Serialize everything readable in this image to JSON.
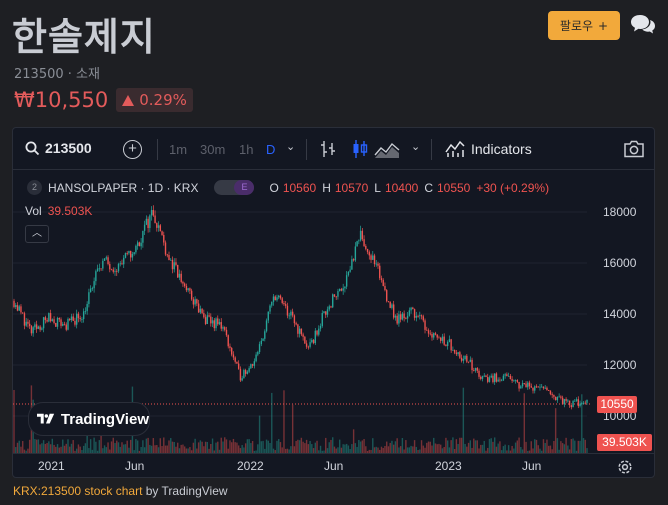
{
  "stock": {
    "name": "한솔제지",
    "meta": "213500 · 소재",
    "price": "₩10,550",
    "change": "0.29%",
    "follow_label": "팔로우",
    "follow_plus": "+"
  },
  "toolbar": {
    "symbol": "213500",
    "intervals": [
      "1m",
      "30m",
      "1h",
      "D"
    ],
    "active_interval": "D",
    "indicators_label": "Indicators"
  },
  "legend": {
    "index": "2",
    "title": "HANSOLPAPER · 1D · KRX",
    "toggle_label": "E",
    "ohlc": [
      {
        "k": "O",
        "v": "10560"
      },
      {
        "k": "H",
        "v": "10570"
      },
      {
        "k": "L",
        "v": "10400"
      },
      {
        "k": "C",
        "v": "10550"
      }
    ],
    "change": "+30 (+0.29%)",
    "vol_label": "Vol",
    "vol_value": "39.503K"
  },
  "axis": {
    "y_ticks": [
      "18000",
      "16000",
      "14000",
      "12000",
      "10000"
    ],
    "x_ticks": [
      "2021",
      "Jun",
      "2022",
      "Jun",
      "2023",
      "Jun"
    ],
    "price_tag": "10550",
    "vol_tag": "39.503K"
  },
  "tv_brand": "TradingView",
  "footer": {
    "link": "KRX:213500 stock chart",
    "suffix": " by TradingView"
  },
  "colors": {
    "up": "#26a69a",
    "down": "#ef5350",
    "accent": "#f2a93b",
    "active_interval": "#2962ff"
  },
  "chart_data": {
    "type": "candlestick",
    "title": "HANSOLPAPER · 1D · KRX",
    "ylim": [
      9400,
      18800
    ],
    "x_ticks": [
      "2021",
      "Jun",
      "2022",
      "Jun",
      "2023",
      "Jun"
    ],
    "anchors": [
      {
        "t": "2020-12",
        "y": 14600
      },
      {
        "t": "2021-01",
        "y": 13300
      },
      {
        "t": "2021-02",
        "y": 13900
      },
      {
        "t": "2021-03",
        "y": 13600
      },
      {
        "t": "2021-04",
        "y": 14100
      },
      {
        "t": "2021-05",
        "y": 16200
      },
      {
        "t": "2021-06",
        "y": 16000
      },
      {
        "t": "2021-07",
        "y": 16700
      },
      {
        "t": "2021-08",
        "y": 18300
      },
      {
        "t": "2021-09",
        "y": 16200
      },
      {
        "t": "2021-10",
        "y": 15000
      },
      {
        "t": "2021-11",
        "y": 13800
      },
      {
        "t": "2021-12",
        "y": 13600
      },
      {
        "t": "2022-01",
        "y": 11500
      },
      {
        "t": "2022-02",
        "y": 12300
      },
      {
        "t": "2022-03",
        "y": 14900
      },
      {
        "t": "2022-04",
        "y": 13900
      },
      {
        "t": "2022-05",
        "y": 12600
      },
      {
        "t": "2022-06",
        "y": 14300
      },
      {
        "t": "2022-07",
        "y": 15300
      },
      {
        "t": "2022-08",
        "y": 17300
      },
      {
        "t": "2022-09",
        "y": 15700
      },
      {
        "t": "2022-10",
        "y": 13800
      },
      {
        "t": "2022-11",
        "y": 14200
      },
      {
        "t": "2022-12",
        "y": 13300
      },
      {
        "t": "2023-01",
        "y": 12900
      },
      {
        "t": "2023-02",
        "y": 12200
      },
      {
        "t": "2023-03",
        "y": 11400
      },
      {
        "t": "2023-04",
        "y": 11500
      },
      {
        "t": "2023-05",
        "y": 11200
      },
      {
        "t": "2023-06",
        "y": 11100
      },
      {
        "t": "2023-07",
        "y": 10800
      },
      {
        "t": "2023-08",
        "y": 10300
      },
      {
        "t": "2023-09",
        "y": 10550
      }
    ],
    "last_close": 10550,
    "last_volume": "39.503K"
  }
}
